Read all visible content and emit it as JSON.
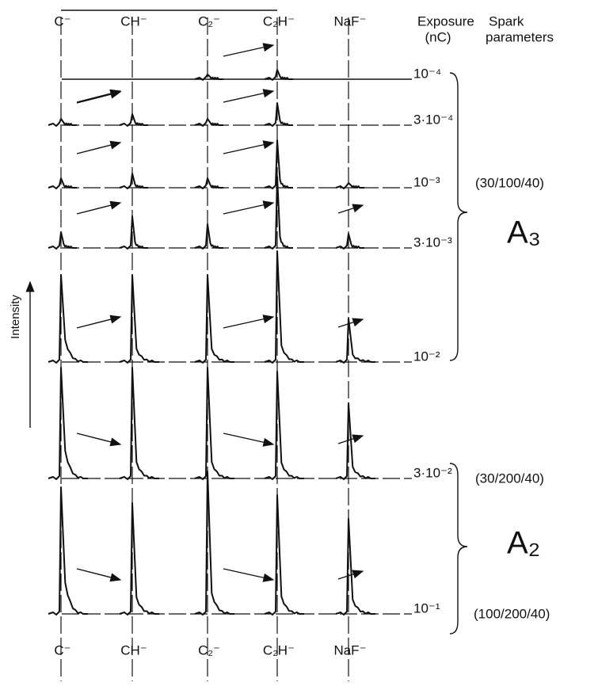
{
  "top_labels": [
    "C⁻",
    "CH⁻",
    "C₂⁻",
    "C₂H⁻",
    "NaF⁻"
  ],
  "bottom_labels": [
    "C⁻",
    "CH⁻",
    "C₂⁻",
    "C₂H⁻",
    "NaF⁻"
  ],
  "header": {
    "exposure": "Exposure",
    "exposure_unit": "(nC)",
    "spark": "Spark",
    "spark_sub": "parameters"
  },
  "exposures": [
    "10⁻⁴",
    "3·10⁻⁴",
    "10⁻³",
    "3·10⁻³",
    "10⁻²",
    "3·10⁻²",
    "10⁻¹"
  ],
  "spark_parameters": [
    "(30/100/40)",
    "(30/200/40)",
    "(100/200/40)"
  ],
  "groups": [
    "A₃",
    "A₂"
  ],
  "y_axis_label": "Intensity"
}
